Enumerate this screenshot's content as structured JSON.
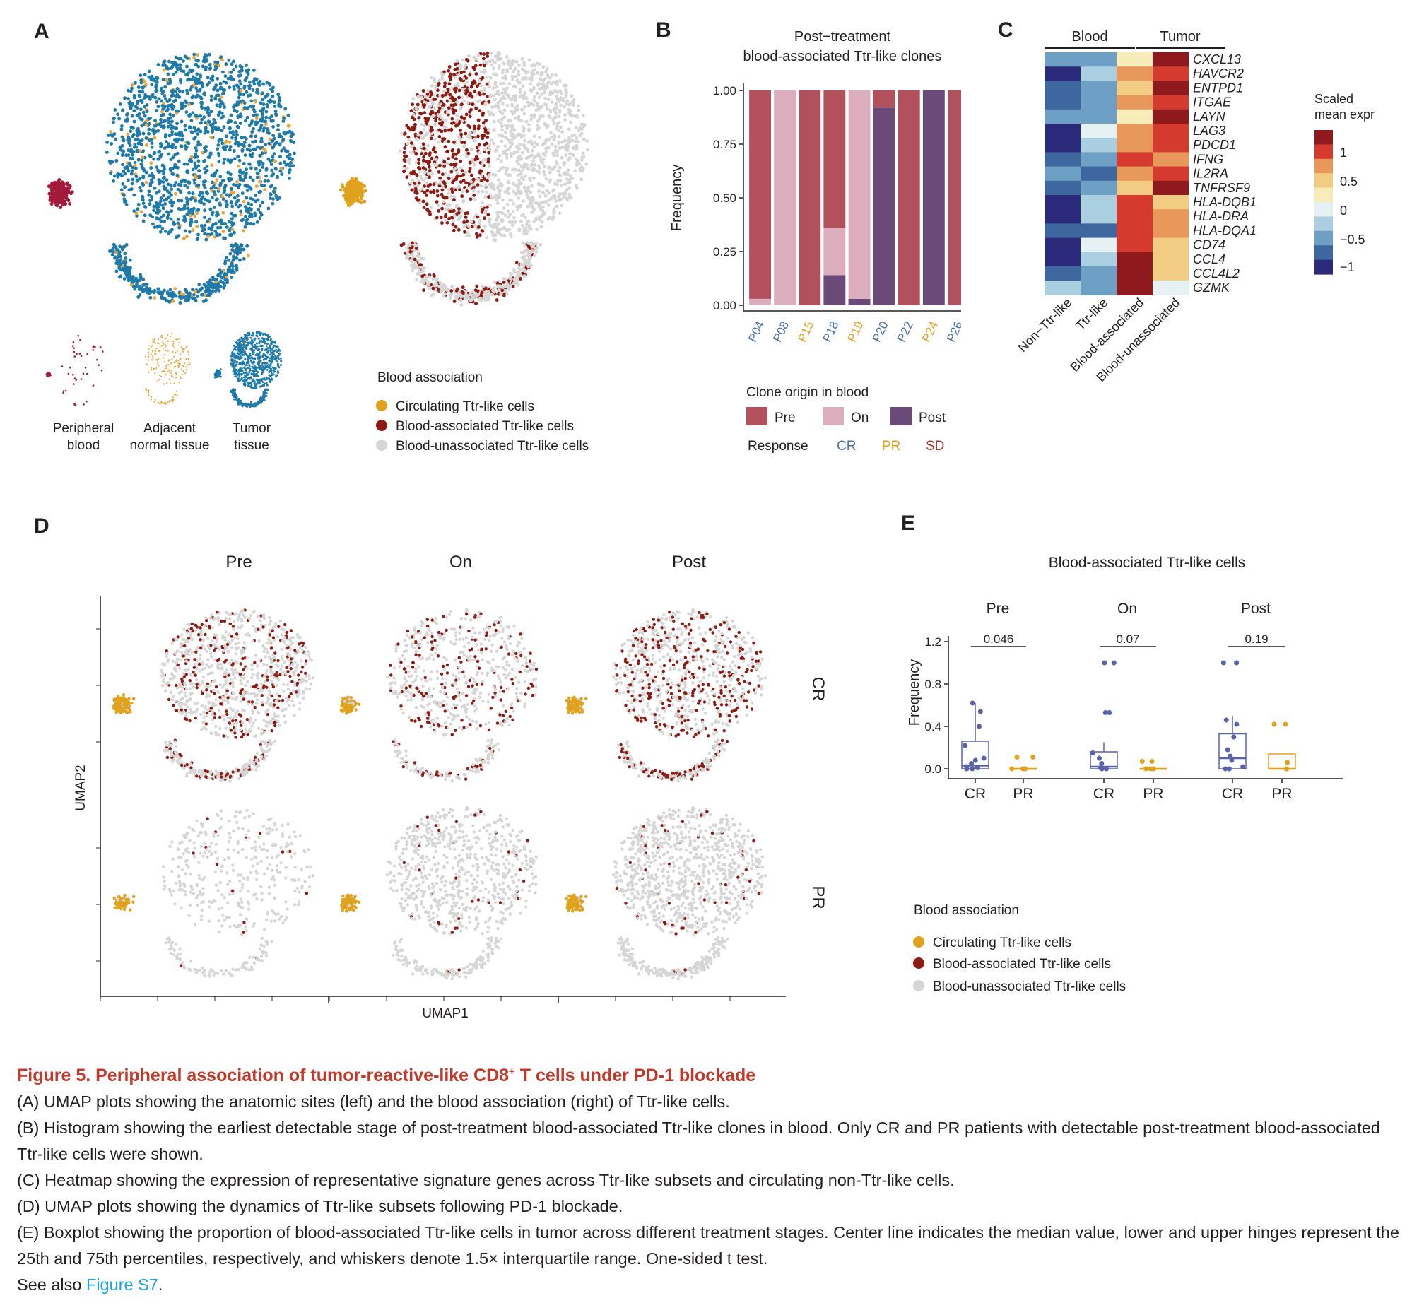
{
  "panel_labels": {
    "A": "A",
    "B": "B",
    "C": "C",
    "D": "D",
    "E": "E"
  },
  "colors": {
    "circulating": "#e0a21d",
    "blood_associated": "#8c1c13",
    "blood_unassociated": "#d6d6d6",
    "peripheral_blood": "#a31a3a",
    "tumor_tissue": "#1f7aa8",
    "adjacent_normal": "#e8a640",
    "pre": "#b2505c",
    "on": "#dcaebd",
    "post": "#6b4a7a",
    "CR": "#4a72a8",
    "PR": "#e0a21d",
    "SD": "#a33a2a",
    "box_cr": "#5a62a8",
    "box_pr": "#e0a21d",
    "caption_title": "#c0392b",
    "caption_link": "#1fa2dc"
  },
  "panelA": {
    "small_labels": [
      {
        "line1": "Peripheral",
        "line2": "blood"
      },
      {
        "line1": "Adjacent",
        "line2": "normal tissue"
      },
      {
        "line1": "Tumor",
        "line2": "tissue"
      }
    ],
    "legend_title": "Blood association",
    "legend_items": [
      "Circulating Ttr-like cells",
      "Blood-associated Ttr-like cells",
      "Blood-unassociated Ttr-like cells"
    ]
  },
  "chart_data": [
    {
      "panel": "B",
      "type": "bar",
      "stacked": true,
      "title": "Post−treatment\nblood-associated Ttr-like clones",
      "ylabel": "Frequency",
      "ylim": [
        0,
        1
      ],
      "yticks": [
        "0.00",
        "0.25",
        "0.50",
        "0.75",
        "1.00"
      ],
      "categories": [
        "P04",
        "P08",
        "P15",
        "P18",
        "P19",
        "P20",
        "P22",
        "P24",
        "P26"
      ],
      "category_response": [
        "CR",
        "CR",
        "PR",
        "CR",
        "PR",
        "CR",
        "CR",
        "PR",
        "CR"
      ],
      "series": [
        {
          "name": "Post",
          "values": [
            0,
            0,
            0,
            0.14,
            0.03,
            0.92,
            0,
            1,
            0
          ]
        },
        {
          "name": "On",
          "values": [
            0.03,
            1,
            0,
            0.22,
            0.97,
            0,
            0,
            0,
            0
          ]
        },
        {
          "name": "Pre",
          "values": [
            0.97,
            0,
            1,
            0.64,
            0,
            0.08,
            1,
            0,
            1
          ]
        }
      ],
      "legend_title": "Clone origin in blood",
      "legend_items": [
        "Pre",
        "On",
        "Post"
      ],
      "response_label": "Response",
      "response_items": [
        "CR",
        "PR",
        "SD"
      ]
    },
    {
      "panel": "C",
      "type": "heatmap",
      "group_labels": [
        "Blood",
        "Tumor"
      ],
      "columns": [
        "Non−Ttr-like",
        "Ttr-like",
        "Blood-associated",
        "Blood-unassociated"
      ],
      "rows": [
        "CXCL13",
        "HAVCR2",
        "ENTPD1",
        "ITGAE",
        "LAYN",
        "LAG3",
        "PDCD1",
        "IFNG",
        "IL2RA",
        "TNFRSF9",
        "HLA-DQB1",
        "HLA-DRA",
        "HLA-DQA1",
        "CD74",
        "CCL4",
        "CCL4L2",
        "GZMK"
      ],
      "values": [
        [
          -0.7,
          -0.7,
          0.1,
          1.3
        ],
        [
          -1.3,
          -0.5,
          0.6,
          1.0
        ],
        [
          -0.9,
          -0.7,
          0.4,
          1.3
        ],
        [
          -0.9,
          -0.7,
          0.6,
          1.0
        ],
        [
          -0.7,
          -0.7,
          0.1,
          1.3
        ],
        [
          -1.3,
          -0.1,
          0.6,
          0.8
        ],
        [
          -1.3,
          -0.5,
          0.6,
          1.0
        ],
        [
          -0.9,
          -0.7,
          1.0,
          0.6
        ],
        [
          -0.7,
          -0.9,
          0.6,
          1.0
        ],
        [
          -0.9,
          -0.7,
          0.4,
          1.3
        ],
        [
          -1.3,
          -0.5,
          1.0,
          0.4
        ],
        [
          -1.3,
          -0.5,
          1.0,
          0.6
        ],
        [
          -0.9,
          -0.9,
          1.0,
          0.6
        ],
        [
          -1.3,
          -0.1,
          1.0,
          0.4
        ],
        [
          -1.3,
          -0.5,
          1.3,
          0.4
        ],
        [
          -0.9,
          -0.7,
          1.3,
          0.4
        ],
        [
          -0.5,
          -0.7,
          1.3,
          -0.1
        ]
      ],
      "legend_title": "Scaled\nmean expr",
      "legend_ticks": [
        "1",
        "0.5",
        "0",
        "−0.5",
        "−1"
      ]
    },
    {
      "panel": "E",
      "type": "box",
      "title": "Blood-associated Ttr-like cells",
      "ylabel": "Frequency",
      "ylim": [
        0,
        1.2
      ],
      "yticks": [
        "0.0",
        "0.4",
        "0.8",
        "1.2"
      ],
      "facets": [
        {
          "name": "Pre",
          "p_value": "0.046",
          "groups": [
            {
              "name": "CR",
              "q1": 0.0,
              "median": 0.03,
              "q3": 0.26,
              "lower": 0.0,
              "upper": 0.62,
              "points": [
                0.62,
                0.54,
                0.4,
                0.22,
                0.1,
                0.08,
                0.05,
                0.02,
                0.01,
                0.0,
                0.0
              ]
            },
            {
              "name": "PR",
              "q1": 0.0,
              "median": 0.0,
              "q3": 0.0,
              "lower": 0.0,
              "upper": 0.0,
              "points": [
                0.11,
                0.11,
                0.0,
                0.0,
                0.0
              ]
            }
          ]
        },
        {
          "name": "On",
          "p_value": "0.07",
          "groups": [
            {
              "name": "CR",
              "q1": 0.0,
              "median": 0.02,
              "q3": 0.16,
              "lower": 0.0,
              "upper": 0.25,
              "points": [
                1.0,
                1.0,
                0.53,
                0.53,
                0.15,
                0.1,
                0.05,
                0.01,
                0.0,
                0.0
              ]
            },
            {
              "name": "PR",
              "q1": 0.0,
              "median": 0.0,
              "q3": 0.0,
              "lower": 0.0,
              "upper": 0.0,
              "points": [
                0.07,
                0.07,
                0.0,
                0.0,
                0.0
              ]
            }
          ]
        },
        {
          "name": "Post",
          "p_value": "0.19",
          "groups": [
            {
              "name": "CR",
              "q1": 0.0,
              "median": 0.1,
              "q3": 0.33,
              "lower": 0.0,
              "upper": 0.5,
              "points": [
                1.0,
                1.0,
                0.46,
                0.42,
                0.3,
                0.18,
                0.12,
                0.08,
                0.02,
                0.0,
                0.0
              ]
            },
            {
              "name": "PR",
              "q1": 0.0,
              "median": 0.0,
              "q3": 0.14,
              "lower": 0.0,
              "upper": 0.14,
              "points": [
                0.42,
                0.42,
                0.06,
                0.0,
                0.0
              ]
            }
          ]
        }
      ],
      "legend_title": "Blood association",
      "legend_items": [
        "Circulating Ttr-like cells",
        "Blood-associated Ttr-like cells",
        "Blood-unassociated Ttr-like cells"
      ]
    }
  ],
  "panelD": {
    "col_titles": [
      "Pre",
      "On",
      "Post"
    ],
    "row_titles": [
      "CR",
      "PR"
    ],
    "xlabel": "UMAP1",
    "ylabel": "UMAP2"
  },
  "caption": {
    "title_part1": "Figure 5.  Peripheral association of tumor-reactive-like CD8",
    "title_sup": "+",
    "title_part2": " T cells under PD-1 blockade",
    "lines": [
      "(A) UMAP plots showing the anatomic sites (left) and the blood association (right) of Ttr-like cells.",
      "(B) Histogram showing the earliest detectable stage of post-treatment blood-associated Ttr-like clones in blood. Only CR and PR patients with detectable post-treatment blood-associated Ttr-like cells were shown.",
      "(C) Heatmap showing the expression of representative signature genes across Ttr-like subsets and circulating non-Ttr-like cells.",
      "(D) UMAP plots showing the dynamics of Ttr-like subsets following PD-1 blockade.",
      "(E) Boxplot showing the proportion of blood-associated Ttr-like cells in tumor across different treatment stages. Center line indicates the median value, lower and upper hinges represent the 25th and 75th percentiles, respectively, and whiskers denote 1.5× interquartile range. One-sided t test."
    ],
    "see_also_prefix": "See also ",
    "see_also_link": "Figure S7",
    "see_also_suffix": "."
  }
}
